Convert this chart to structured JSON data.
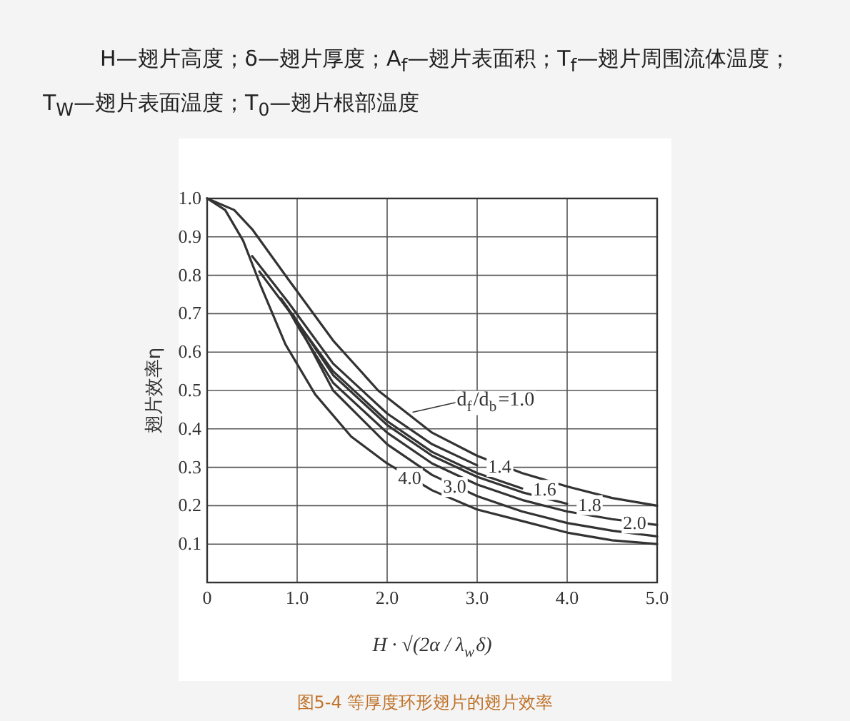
{
  "chart_data": {
    "type": "line",
    "title": "H—翅片高度；δ—翅片厚度；A$_{f}$—翅片表面积；T$_{f}$—翅片周围流体温度；T$_{W}$—翅片表面温度；T$_{0}$—翅片根部温度",
    "xlabel": "H · √(2α / λ$_{w}$δ)",
    "ylabel": "翅片效率η",
    "xlim": [
      0,
      5
    ],
    "ylim": [
      0,
      1
    ],
    "xticks": [
      0,
      {
        "value": 1,
        "label": "1.0"
      },
      {
        "value": 2,
        "label": "2.0"
      },
      {
        "value": 3,
        "label": "3.0"
      },
      {
        "value": 4,
        "label": "4.0"
      },
      {
        "value": 5,
        "label": "5.0"
      }
    ],
    "yticks": [
      {
        "value": 0.1,
        "label": "0.1"
      },
      {
        "value": 0.2,
        "label": "0.2"
      },
      {
        "value": 0.3,
        "label": "0.3"
      },
      {
        "value": 0.4,
        "label": "0.4"
      },
      {
        "value": 0.5,
        "label": "0.5"
      },
      {
        "value": 0.6,
        "label": "0.6"
      },
      {
        "value": 0.7,
        "label": "0.7"
      },
      {
        "value": 0.8,
        "label": "0.8"
      },
      {
        "value": 0.9,
        "label": "0.9"
      },
      {
        "value": 1,
        "label": "1.0"
      }
    ],
    "grid": true,
    "series": [
      {
        "name": "d$_{f}$/d$_{b}$=1.0",
        "color": "#333333",
        "x": [
          0,
          0.3,
          0.5,
          0.9,
          1.4,
          1.9,
          2.5,
          3,
          3.5,
          4,
          4.5,
          5
        ],
        "values": [
          1.0,
          0.97,
          0.92,
          0.79,
          0.63,
          0.5,
          0.39,
          0.33,
          0.285,
          0.25,
          0.22,
          0.2
        ]
      },
      {
        "name": "1.4",
        "color": "#333333",
        "x": [
          0.5,
          0.9,
          1.4,
          2,
          2.5,
          3
        ],
        "values": [
          0.85,
          0.73,
          0.57,
          0.44,
          0.36,
          0.305
        ]
      },
      {
        "name": "1.6",
        "color": "#333333",
        "x": [
          0.58,
          0.9,
          1.4,
          2,
          2.5,
          3,
          3.5
        ],
        "values": [
          0.81,
          0.71,
          0.55,
          0.42,
          0.34,
          0.285,
          0.245
        ]
      },
      {
        "name": "1.8",
        "color": "#333333",
        "x": [
          0.82,
          1,
          1.4,
          2,
          2.5,
          3,
          3.5,
          4
        ],
        "values": [
          0.74,
          0.68,
          0.54,
          0.41,
          0.33,
          0.275,
          0.235,
          0.205
        ]
      },
      {
        "name": "2.0",
        "color": "#333333",
        "x": [
          0.88,
          1,
          1.4,
          2,
          2.5,
          3,
          3.5,
          4,
          4.5,
          5
        ],
        "values": [
          0.72,
          0.67,
          0.52,
          0.39,
          0.31,
          0.255,
          0.215,
          0.185,
          0.165,
          0.15
        ]
      },
      {
        "name": "3.0",
        "color": "#333333",
        "x": [
          0.95,
          1.4,
          2,
          2.5,
          3,
          3.5,
          4,
          4.5,
          5
        ],
        "values": [
          0.7,
          0.5,
          0.36,
          0.28,
          0.225,
          0.185,
          0.155,
          0.135,
          0.12
        ]
      },
      {
        "name": "4.0",
        "color": "#333333",
        "x": [
          0,
          0.2,
          0.4,
          0.6,
          0.87,
          1.2,
          1.6,
          2,
          2.5,
          3,
          3.5,
          4,
          4.5,
          5
        ],
        "values": [
          1.0,
          0.97,
          0.89,
          0.77,
          0.62,
          0.49,
          0.38,
          0.31,
          0.24,
          0.19,
          0.16,
          0.13,
          0.11,
          0.1
        ]
      }
    ],
    "annotations": [
      "图5-4 等厚度环形翅片的翅片效率"
    ]
  }
}
